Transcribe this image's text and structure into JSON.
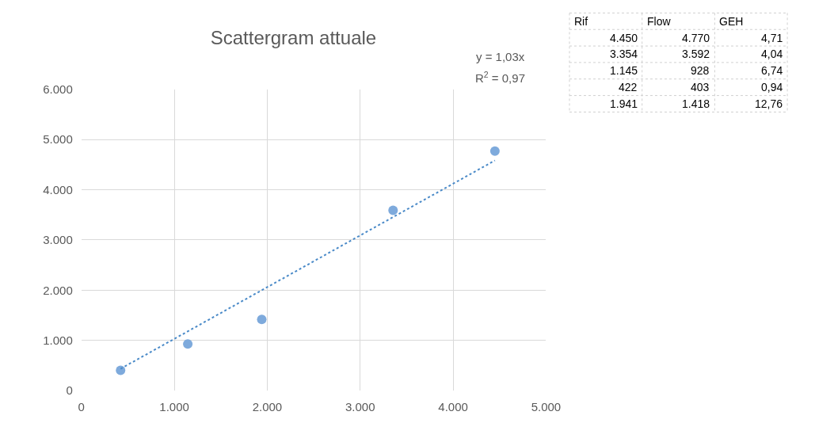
{
  "chart_data": [
    {
      "type": "scatter",
      "title": "Scattergram attuale",
      "x": [
        4450,
        3354,
        1145,
        422,
        1941
      ],
      "series": [
        {
          "type": "scatter",
          "color": "#7eaadc",
          "values": [
            4770,
            3592,
            928,
            403,
            1418
          ],
          "marker": "circle"
        },
        {
          "type": "line",
          "color": "#4a8ac8",
          "x": [
            422,
            4450
          ],
          "values": [
            435,
            4584
          ],
          "line_style": "dotted"
        }
      ],
      "xlim": [
        0,
        5000
      ],
      "xticks": [
        {
          "value": 0,
          "label": "0"
        },
        {
          "value": 1000,
          "label": "1.000"
        },
        {
          "value": 2000,
          "label": "2.000"
        },
        {
          "value": 3000,
          "label": "3.000"
        },
        {
          "value": 4000,
          "label": "4.000"
        },
        {
          "value": 5000,
          "label": "5.000"
        }
      ],
      "ylim": [
        0,
        6000
      ],
      "yticks": [
        {
          "value": 0,
          "label": "0"
        },
        {
          "value": 1000,
          "label": "1.000"
        },
        {
          "value": 2000,
          "label": "2.000"
        },
        {
          "value": 3000,
          "label": "3.000"
        },
        {
          "value": 4000,
          "label": "4.000"
        },
        {
          "value": 5000,
          "label": "5.000"
        },
        {
          "value": 6000,
          "label": "6.000"
        }
      ],
      "grid": true,
      "annotations": [
        "y = 1,03x",
        "R$^{2}$ = 0,97"
      ]
    },
    {
      "type": "other",
      "categories": [
        "Rif",
        "Flow",
        "GEH"
      ],
      "annotations": [
        "4.450",
        "4.770",
        "4,71",
        "3.354",
        "3.592",
        "4,04",
        "1.145",
        "928",
        "6,74",
        "422",
        "403",
        "0,94",
        "1.941",
        "1.418",
        "12,76"
      ]
    }
  ]
}
